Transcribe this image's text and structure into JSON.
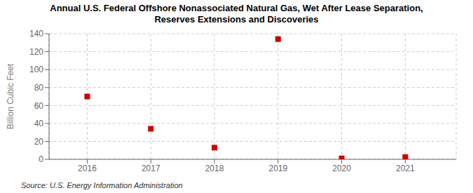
{
  "chart_data": {
    "type": "scatter",
    "title": "Annual U.S. Federal Offshore Nonassociated Natural Gas, Wet After Lease Separation,\nReserves Extensions and Discoveries",
    "ylabel": "Billion Cubic Feet",
    "annotations": [
      "Source: U.S. Energy Information Administration"
    ],
    "x": [
      2016,
      2017,
      2018,
      2019,
      2020,
      2021
    ],
    "values": [
      70.0,
      34.0,
      13.0,
      134.0,
      1.0,
      2.5
    ],
    "color": "#cc0000",
    "marker": "square",
    "xlim": [
      2015.4,
      2021.8
    ],
    "xticks": [
      2016,
      2017,
      2018,
      2019,
      2020,
      2021
    ],
    "ylim": [
      0,
      140
    ],
    "yticks": [
      0,
      20,
      40,
      60,
      80,
      100,
      120,
      140
    ],
    "grid": true
  }
}
